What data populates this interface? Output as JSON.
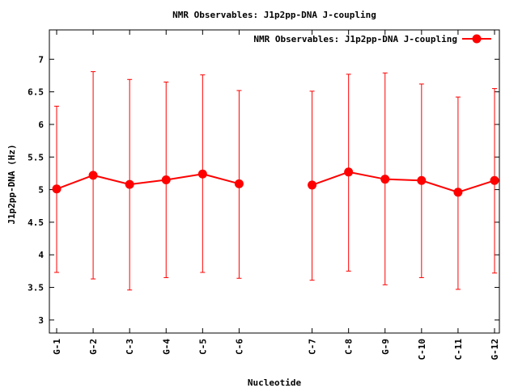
{
  "chart_data": {
    "type": "line",
    "title": "NMR Observables: J1p2pp-DNA J-coupling",
    "xlabel": "Nucleotide",
    "ylabel": "J1p2pp-DNA (Hz)",
    "ylim": [
      2.8,
      7.45
    ],
    "yticks": [
      3,
      3.5,
      4,
      4.5,
      5,
      5.5,
      6,
      6.5,
      7
    ],
    "ytick_labels": [
      "3",
      "3.5",
      "4",
      "4.5",
      "5",
      "5.5",
      "6",
      "6.5",
      "7"
    ],
    "categories": [
      "G-1",
      "G-2",
      "C-3",
      "G-4",
      "C-5",
      "C-6",
      "C-7",
      "C-8",
      "G-9",
      "C-10",
      "C-11",
      "G-12"
    ],
    "x_positions": [
      1,
      2,
      3,
      4,
      5,
      6,
      8,
      9,
      10,
      11,
      12,
      13
    ],
    "xlim": [
      1,
      13
    ],
    "grid": false,
    "legend_position": "top-right",
    "series": [
      {
        "name": "NMR Observables: J1p2pp-DNA J-coupling",
        "color": "#ff0000",
        "segments": [
          [
            0,
            5
          ],
          [
            6,
            11
          ]
        ],
        "values": [
          5.01,
          5.22,
          5.08,
          5.15,
          5.24,
          5.09,
          5.07,
          5.27,
          5.16,
          5.14,
          4.96,
          5.14
        ],
        "err_low": [
          3.73,
          3.63,
          3.46,
          3.65,
          3.73,
          3.64,
          3.61,
          3.75,
          3.54,
          3.65,
          3.47,
          3.72
        ],
        "err_high": [
          6.28,
          6.81,
          6.69,
          6.65,
          6.76,
          6.52,
          6.51,
          6.77,
          6.79,
          6.62,
          6.42,
          6.55
        ]
      }
    ]
  }
}
